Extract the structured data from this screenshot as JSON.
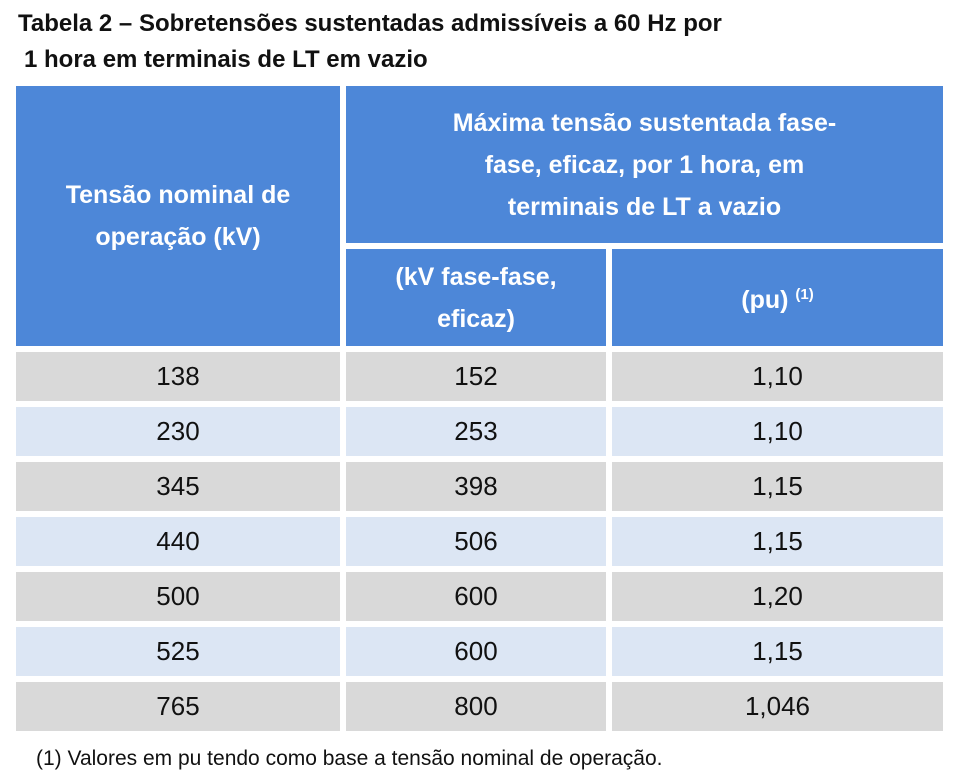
{
  "title": [
    "Tabela 2 – Sobretensões sustentadas admissíveis a 60 Hz por",
    "1 hora em terminais de LT em vazio"
  ],
  "table": {
    "header": {
      "nominal": [
        "Tensão nominal de",
        "operação (kV)"
      ],
      "max": [
        "Máxima tensão sustentada fase-",
        "fase, eficaz, por 1 hora, em",
        "terminais de LT a vazio"
      ],
      "kv": [
        "(kV fase-fase,",
        "eficaz)"
      ],
      "pu": {
        "label": "(pu)",
        "note": "(1)"
      }
    },
    "rows": [
      [
        "138",
        "152",
        "1,10"
      ],
      [
        "230",
        "253",
        "1,10"
      ],
      [
        "345",
        "398",
        "1,15"
      ],
      [
        "440",
        "506",
        "1,15"
      ],
      [
        "500",
        "600",
        "1,20"
      ],
      [
        "525",
        "600",
        "1,15"
      ],
      [
        "765",
        "800",
        "1,046"
      ]
    ]
  },
  "footnote": "(1) Valores em pu tendo como base a tensão nominal de operação."
}
